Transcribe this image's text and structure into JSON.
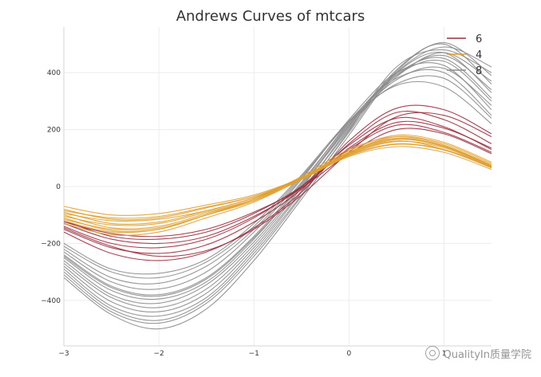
{
  "chart_data": {
    "type": "line",
    "title": "Andrews Curves of mtcars",
    "xlabel": "",
    "ylabel": "",
    "xlim": [
      -3,
      1.5
    ],
    "ylim": [
      -560,
      560
    ],
    "xticks": [
      -3,
      -2,
      -1,
      0,
      1
    ],
    "yticks": [
      -400,
      -200,
      0,
      200,
      400
    ],
    "xtick_labels": [
      "−3",
      "−2",
      "−1",
      "0",
      "1"
    ],
    "ytick_labels": [
      "−400",
      "−200",
      "0",
      "200",
      "400"
    ],
    "grid": true,
    "legend": {
      "position": "top-right",
      "entries": [
        "6",
        "4",
        "8"
      ]
    },
    "colors": {
      "6": "#9b2d3e",
      "4": "#e0a030",
      "8": "#8c8c8c"
    },
    "series": [
      {
        "name": "6",
        "curves": [
          {
            "x": [
              -3,
              -2.5,
              -2,
              -1.5,
              -1,
              -0.5,
              0,
              0.5,
              1,
              1.5
            ],
            "y": [
              -120,
              -175,
              -185,
              -160,
              -95,
              0,
              130,
              215,
              190,
              120
            ]
          },
          {
            "x": [
              -3,
              -2.5,
              -2,
              -1.5,
              -1,
              -0.5,
              0,
              0.5,
              1,
              1.5
            ],
            "y": [
              -140,
              -200,
              -215,
              -185,
              -110,
              0,
              145,
              240,
              210,
              130
            ]
          },
          {
            "x": [
              -3,
              -2.5,
              -2,
              -1.5,
              -1,
              -0.5,
              0,
              0.5,
              1,
              1.5
            ],
            "y": [
              -150,
              -215,
              -235,
              -205,
              -125,
              -10,
              150,
              260,
              235,
              150
            ]
          },
          {
            "x": [
              -3,
              -2.5,
              -2,
              -1.5,
              -1,
              -0.5,
              0,
              0.5,
              1,
              1.5
            ],
            "y": [
              -160,
              -235,
              -260,
              -230,
              -145,
              -20,
              160,
              275,
              270,
              185
            ]
          },
          {
            "x": [
              -3,
              -2.5,
              -2,
              -1.5,
              -1,
              -0.5,
              0,
              0.5,
              1,
              1.5
            ],
            "y": [
              -130,
              -185,
              -200,
              -175,
              -105,
              -5,
              135,
              225,
              205,
              135
            ]
          },
          {
            "x": [
              -3,
              -2.5,
              -2,
              -1.5,
              -1,
              -0.5,
              0,
              0.5,
              1,
              1.5
            ],
            "y": [
              -145,
              -210,
              -245,
              -225,
              -150,
              -30,
              120,
              245,
              250,
              175
            ]
          },
          {
            "x": [
              -3,
              -2.5,
              -2,
              -1.5,
              -1,
              -0.5,
              0,
              0.5,
              1,
              1.5
            ],
            "y": [
              -125,
              -165,
              -175,
              -150,
              -90,
              -5,
              115,
              200,
              185,
              115
            ]
          }
        ]
      },
      {
        "name": "4",
        "curves": [
          {
            "x": [
              -3,
              -2.5,
              -2,
              -1.5,
              -1,
              -0.5,
              0,
              0.5,
              1,
              1.5
            ],
            "y": [
              -70,
              -100,
              -95,
              -65,
              -30,
              30,
              110,
              150,
              130,
              70
            ]
          },
          {
            "x": [
              -3,
              -2.5,
              -2,
              -1.5,
              -1,
              -0.5,
              0,
              0.5,
              1,
              1.5
            ],
            "y": [
              -80,
              -115,
              -110,
              -75,
              -35,
              30,
              115,
              165,
              140,
              75
            ]
          },
          {
            "x": [
              -3,
              -2.5,
              -2,
              -1.5,
              -1,
              -0.5,
              0,
              0.5,
              1,
              1.5
            ],
            "y": [
              -90,
              -130,
              -125,
              -85,
              -40,
              30,
              120,
              175,
              150,
              80
            ]
          },
          {
            "x": [
              -3,
              -2.5,
              -2,
              -1.5,
              -1,
              -0.5,
              0,
              0.5,
              1,
              1.5
            ],
            "y": [
              -100,
              -145,
              -140,
              -95,
              -45,
              30,
              125,
              180,
              155,
              85
            ]
          },
          {
            "x": [
              -3,
              -2.5,
              -2,
              -1.5,
              -1,
              -0.5,
              0,
              0.5,
              1,
              1.5
            ],
            "y": [
              -110,
              -155,
              -150,
              -100,
              -50,
              25,
              120,
              170,
              140,
              70
            ]
          },
          {
            "x": [
              -3,
              -2.5,
              -2,
              -1.5,
              -1,
              -0.5,
              0,
              0.5,
              1,
              1.5
            ],
            "y": [
              -120,
              -160,
              -150,
              -100,
              -45,
              35,
              130,
              175,
              145,
              75
            ]
          },
          {
            "x": [
              -3,
              -2.5,
              -2,
              -1.5,
              -1,
              -0.5,
              0,
              0.5,
              1,
              1.5
            ],
            "y": [
              -130,
              -170,
              -160,
              -110,
              -55,
              25,
              115,
              160,
              130,
              65
            ]
          },
          {
            "x": [
              -3,
              -2.5,
              -2,
              -1.5,
              -1,
              -0.5,
              0,
              0.5,
              1,
              1.5
            ],
            "y": [
              -95,
              -120,
              -115,
              -85,
              -40,
              25,
              105,
              140,
              120,
              60
            ]
          },
          {
            "x": [
              -3,
              -2.5,
              -2,
              -1.5,
              -1,
              -0.5,
              0,
              0.5,
              1,
              1.5
            ],
            "y": [
              -105,
              -135,
              -130,
              -90,
              -45,
              28,
              112,
              158,
              136,
              68
            ]
          },
          {
            "x": [
              -3,
              -2.5,
              -2,
              -1.5,
              -1,
              -0.5,
              0,
              0.5,
              1,
              1.5
            ],
            "y": [
              -115,
              -150,
              -145,
              -100,
              -50,
              30,
              118,
              168,
              142,
              72
            ]
          },
          {
            "x": [
              -3,
              -2.5,
              -2,
              -1.5,
              -1,
              -0.5,
              0,
              0.5,
              1,
              1.5
            ],
            "y": [
              -85,
              -110,
              -105,
              -72,
              -35,
              25,
              108,
              148,
              128,
              66
            ]
          }
        ]
      },
      {
        "name": "8",
        "curves": [
          {
            "x": [
              -3,
              -2.5,
              -2,
              -1.5,
              -1,
              -0.5,
              0,
              0.5,
              1,
              1.5
            ],
            "y": [
              -220,
              -320,
              -340,
              -280,
              -150,
              30,
              230,
              380,
              400,
              250
            ]
          },
          {
            "x": [
              -3,
              -2.5,
              -2,
              -1.5,
              -1,
              -0.5,
              0,
              0.5,
              1,
              1.5
            ],
            "y": [
              -240,
              -350,
              -380,
              -320,
              -175,
              15,
              220,
              390,
              440,
              300
            ]
          },
          {
            "x": [
              -3,
              -2.5,
              -2,
              -1.5,
              -1,
              -0.5,
              0,
              0.5,
              1,
              1.5
            ],
            "y": [
              -260,
              -380,
              -410,
              -345,
              -195,
              0,
              210,
              400,
              470,
              330
            ]
          },
          {
            "x": [
              -3,
              -2.5,
              -2,
              -1.5,
              -1,
              -0.5,
              0,
              0.5,
              1,
              1.5
            ],
            "y": [
              -280,
              -405,
              -440,
              -375,
              -215,
              -15,
              200,
              410,
              500,
              360
            ]
          },
          {
            "x": [
              -3,
              -2.5,
              -2,
              -1.5,
              -1,
              -0.5,
              0,
              0.5,
              1,
              1.5
            ],
            "y": [
              -300,
              -430,
              -470,
              -400,
              -235,
              -30,
              190,
              405,
              505,
              390
            ]
          },
          {
            "x": [
              -3,
              -2.5,
              -2,
              -1.5,
              -1,
              -0.5,
              0,
              0.5,
              1,
              1.5
            ],
            "y": [
              -320,
              -450,
              -500,
              -430,
              -260,
              -45,
              180,
              400,
              490,
              420
            ]
          },
          {
            "x": [
              -3,
              -2.5,
              -2,
              -1.5,
              -1,
              -0.5,
              0,
              0.5,
              1,
              1.5
            ],
            "y": [
              -210,
              -300,
              -320,
              -265,
              -140,
              35,
              225,
              360,
              380,
              240
            ]
          },
          {
            "x": [
              -3,
              -2.5,
              -2,
              -1.5,
              -1,
              -0.5,
              0,
              0.5,
              1,
              1.5
            ],
            "y": [
              -230,
              -335,
              -360,
              -300,
              -160,
              25,
              235,
              400,
              425,
              270
            ]
          },
          {
            "x": [
              -3,
              -2.5,
              -2,
              -1.5,
              -1,
              -0.5,
              0,
              0.5,
              1,
              1.5
            ],
            "y": [
              -250,
              -365,
              -395,
              -335,
              -185,
              10,
              225,
              395,
              450,
              310
            ]
          },
          {
            "x": [
              -3,
              -2.5,
              -2,
              -1.5,
              -1,
              -0.5,
              0,
              0.5,
              1,
              1.5
            ],
            "y": [
              -270,
              -390,
              -425,
              -360,
              -205,
              -5,
              215,
              390,
              460,
              340
            ]
          },
          {
            "x": [
              -3,
              -2.5,
              -2,
              -1.5,
              -1,
              -0.5,
              0,
              0.5,
              1,
              1.5
            ],
            "y": [
              -290,
              -420,
              -455,
              -390,
              -225,
              -20,
              205,
              385,
              470,
              370
            ]
          },
          {
            "x": [
              -3,
              -2.5,
              -2,
              -1.5,
              -1,
              -0.5,
              0,
              0.5,
              1,
              1.5
            ],
            "y": [
              -200,
              -290,
              -305,
              -255,
              -130,
              40,
              230,
              355,
              350,
              220
            ]
          },
          {
            "x": [
              -3,
              -2.5,
              -2,
              -1.5,
              -1,
              -0.5,
              0,
              0.5,
              1,
              1.5
            ],
            "y": [
              -310,
              -440,
              -480,
              -410,
              -245,
              -35,
              195,
              420,
              480,
              400
            ]
          },
          {
            "x": [
              -3,
              -2.5,
              -2,
              -1.5,
              -1,
              -0.5,
              0,
              0.5,
              1,
              1.5
            ],
            "y": [
              -245,
              -355,
              -385,
              -325,
              -180,
              5,
              215,
              375,
              415,
              285
            ]
          }
        ]
      }
    ]
  },
  "watermark": {
    "text": "QualityIn质量学院"
  }
}
